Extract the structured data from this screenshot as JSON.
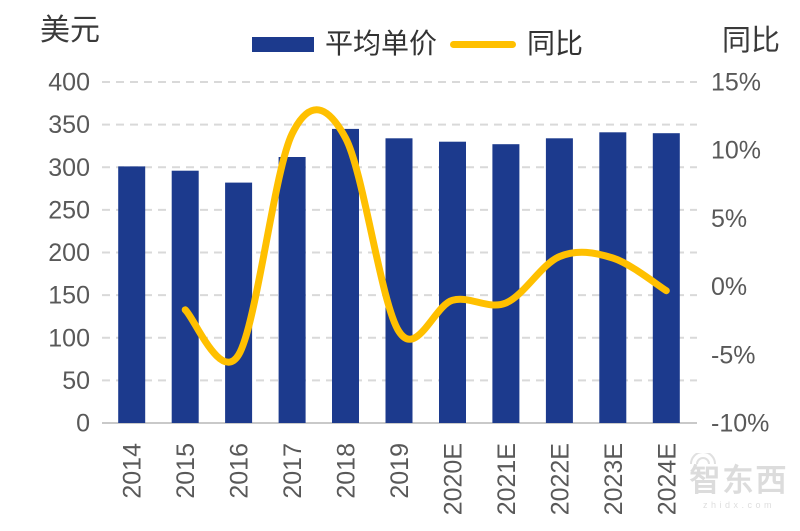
{
  "header": {
    "left_axis_title": "美元",
    "right_axis_title": "同比",
    "legend": [
      {
        "label": "平均单价",
        "swatch": "bar-swatch",
        "color": "#1c3a8d"
      },
      {
        "label": "同比",
        "swatch": "line-swatch",
        "color": "#ffc000"
      }
    ]
  },
  "watermark": {
    "brand": "智东西",
    "domain": "zhidx.com"
  },
  "chart_data": {
    "type": "bar+line combo",
    "categories": [
      "2014",
      "2015",
      "2016",
      "2017",
      "2018",
      "2019",
      "2020E",
      "2021E",
      "2022E",
      "2023E",
      "2024E"
    ],
    "series": [
      {
        "name": "平均单价",
        "type": "bar",
        "axis": "left",
        "color": "#1c3a8d",
        "values": [
          301,
          296,
          282,
          312,
          345,
          334,
          330,
          327,
          334,
          341,
          340
        ]
      },
      {
        "name": "同比",
        "type": "line",
        "axis": "right",
        "color": "#ffc000",
        "smooth": true,
        "values": [
          null,
          -1.7,
          -5.0,
          11.2,
          10.9,
          -3.3,
          -1.0,
          -1.2,
          2.2,
          2.1,
          -0.3
        ]
      }
    ],
    "left_axis": {
      "title": "美元",
      "min": 0,
      "max": 400,
      "step": 50,
      "ticks": [
        "400",
        "350",
        "300",
        "250",
        "200",
        "150",
        "100",
        "50",
        "0"
      ]
    },
    "right_axis": {
      "title": "同比",
      "min": -10,
      "max": 15,
      "step": 5,
      "ticks": [
        "15%",
        "10%",
        "5%",
        "0%",
        "-5%",
        "-10%"
      ]
    },
    "grid": "horizontal-dashed",
    "legend_position": "top-center",
    "x_label_rotation": -90
  },
  "style": {
    "grid_color": "#d9d9d9",
    "axis_line_color": "#c9c9c9",
    "tick_text_color": "#595959",
    "bar_color": "#1c3a8d",
    "line_color": "#ffc000"
  }
}
